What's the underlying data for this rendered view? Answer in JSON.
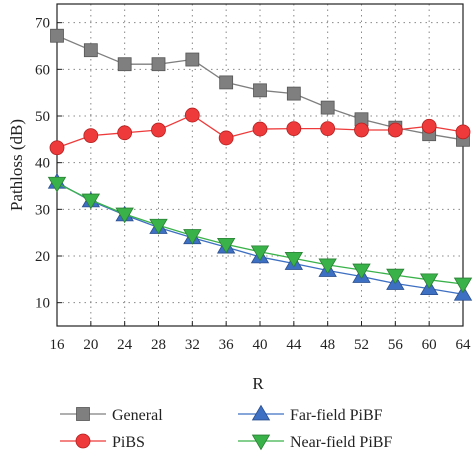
{
  "chart_data": {
    "type": "line",
    "xlabel": "R",
    "ylabel": "Pathloss (dB)",
    "x": [
      16,
      20,
      24,
      28,
      32,
      36,
      40,
      44,
      48,
      52,
      56,
      60,
      64
    ],
    "xticks": [
      16,
      20,
      24,
      28,
      32,
      36,
      40,
      44,
      48,
      52,
      56,
      60,
      64
    ],
    "yticks": [
      10,
      20,
      30,
      40,
      50,
      60,
      70
    ],
    "xlim": [
      16,
      64
    ],
    "ylim": [
      5,
      74
    ],
    "grid": true,
    "legend_position": "bottom",
    "series": [
      {
        "name": "General",
        "marker": "square",
        "color": "#7f7f7f",
        "values": [
          67.2,
          64.1,
          61.1,
          61.1,
          62.1,
          57.2,
          55.5,
          54.8,
          51.8,
          49.3,
          47.5,
          46.1,
          44.9
        ]
      },
      {
        "name": "PiBS",
        "marker": "circle",
        "color": "#ee3a3a",
        "values": [
          43.2,
          45.8,
          46.4,
          47.0,
          50.2,
          45.3,
          47.2,
          47.3,
          47.3,
          47.0,
          47.0,
          47.8,
          46.6
        ]
      },
      {
        "name": "Far-field PiBF",
        "marker": "triangle-up",
        "color": "#3d6fc2",
        "values": [
          35.8,
          31.8,
          28.8,
          26.1,
          23.9,
          21.9,
          19.8,
          18.4,
          16.9,
          15.6,
          14.1,
          13.0,
          11.8
        ]
      },
      {
        "name": "Near-field PiBF",
        "marker": "triangle-down",
        "color": "#3ab24a",
        "values": [
          35.6,
          32.0,
          29.0,
          26.6,
          24.4,
          22.5,
          20.9,
          19.5,
          18.1,
          17.0,
          15.9,
          14.9,
          14.0
        ]
      }
    ]
  }
}
